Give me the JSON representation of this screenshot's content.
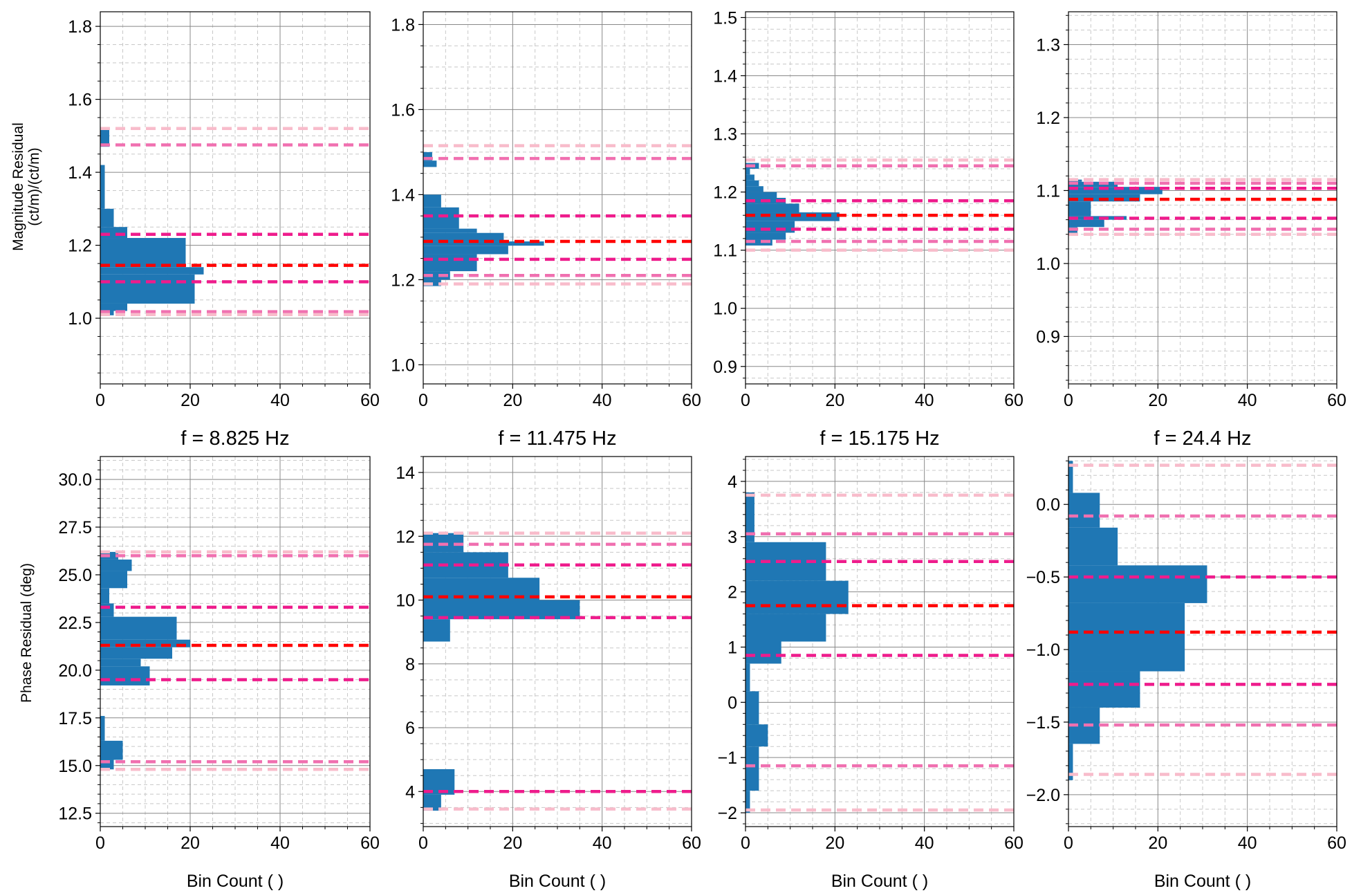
{
  "figure": {
    "magnitude_ylabel": [
      "Magnitude Residual",
      "(ct/m)/(ct/m)"
    ],
    "phase_ylabel": "Phase Residual (deg)",
    "xlabel": "Bin Count ( )"
  },
  "style": {
    "bar_color": "#1f77b4",
    "median_color": "#ff0000",
    "sigma1_color": "#ee1c8c",
    "sigma2_color": "#f070b0",
    "sigma3_color": "#f8bccb",
    "grid_major": "#888888",
    "grid_minor": "#c8c8c8"
  },
  "chart_data": [
    {
      "type": "bar",
      "orientation": "horizontal",
      "row": "magnitude",
      "col": 0,
      "title": "",
      "xlabel": "",
      "ylabel": "Magnitude Residual (ct/m)/(ct/m)",
      "xlim": [
        0,
        60
      ],
      "ylim": [
        0.82,
        1.84
      ],
      "xticks": [
        "0",
        "20",
        "40",
        "60"
      ],
      "yticks": [
        1.0,
        1.2,
        1.4,
        1.6,
        1.8
      ],
      "ytick_labels": [
        "1.0",
        "1.2",
        "1.4",
        "1.6",
        "1.8"
      ],
      "yminor_step": 0.05,
      "grid": true,
      "bins": [
        [
          1.008,
          1.02,
          3
        ],
        [
          1.02,
          1.04,
          6
        ],
        [
          1.04,
          1.12,
          21
        ],
        [
          1.12,
          1.14,
          23
        ],
        [
          1.14,
          1.22,
          19
        ],
        [
          1.22,
          1.25,
          6
        ],
        [
          1.25,
          1.3,
          3
        ],
        [
          1.3,
          1.42,
          1
        ],
        [
          1.47,
          1.52,
          2
        ]
      ],
      "lines": [
        {
          "level": "sigma3",
          "value": 1.52
        },
        {
          "level": "sigma2",
          "value": 1.475
        },
        {
          "level": "sigma1",
          "value": 1.23
        },
        {
          "level": "median",
          "value": 1.145
        },
        {
          "level": "sigma1",
          "value": 1.1
        },
        {
          "level": "sigma2",
          "value": 1.018
        },
        {
          "level": "sigma3",
          "value": 1.01
        }
      ]
    },
    {
      "type": "bar",
      "orientation": "horizontal",
      "row": "magnitude",
      "col": 1,
      "title": "",
      "xlabel": "",
      "ylabel": "",
      "xlim": [
        0,
        60
      ],
      "ylim": [
        0.955,
        1.83
      ],
      "xticks": [
        "0",
        "20",
        "40",
        "60"
      ],
      "yticks": [
        1.0,
        1.2,
        1.4,
        1.6,
        1.8
      ],
      "ytick_labels": [
        "1.0",
        "1.2",
        "1.4",
        "1.6",
        "1.8"
      ],
      "yminor_step": 0.05,
      "grid": true,
      "bins": [
        [
          1.185,
          1.2,
          4
        ],
        [
          1.2,
          1.22,
          6
        ],
        [
          1.22,
          1.26,
          12
        ],
        [
          1.26,
          1.28,
          19
        ],
        [
          1.28,
          1.29,
          27
        ],
        [
          1.29,
          1.31,
          18
        ],
        [
          1.31,
          1.32,
          12
        ],
        [
          1.32,
          1.37,
          8
        ],
        [
          1.37,
          1.4,
          4
        ],
        [
          1.465,
          1.48,
          3
        ],
        [
          1.48,
          1.5,
          2
        ]
      ],
      "lines": [
        {
          "level": "sigma3",
          "value": 1.515
        },
        {
          "level": "sigma2",
          "value": 1.485
        },
        {
          "level": "sigma1",
          "value": 1.35
        },
        {
          "level": "median",
          "value": 1.29
        },
        {
          "level": "sigma1",
          "value": 1.248
        },
        {
          "level": "sigma2",
          "value": 1.21
        },
        {
          "level": "sigma3",
          "value": 1.19
        }
      ]
    },
    {
      "type": "bar",
      "orientation": "horizontal",
      "row": "magnitude",
      "col": 2,
      "title": "",
      "xlabel": "",
      "ylabel": "",
      "xlim": [
        0,
        60
      ],
      "ylim": [
        0.87,
        1.51
      ],
      "xticks": [
        "0",
        "20",
        "40",
        "60"
      ],
      "yticks": [
        0.9,
        1.0,
        1.1,
        1.2,
        1.3,
        1.4,
        1.5
      ],
      "ytick_labels": [
        "0.9",
        "1.0",
        "1.1",
        "1.2",
        "1.3",
        "1.4",
        "1.5"
      ],
      "yminor_step": 0.02,
      "grid": true,
      "bins": [
        [
          1.108,
          1.118,
          6
        ],
        [
          1.118,
          1.13,
          9
        ],
        [
          1.13,
          1.15,
          11
        ],
        [
          1.15,
          1.165,
          21
        ],
        [
          1.165,
          1.18,
          12
        ],
        [
          1.18,
          1.19,
          9
        ],
        [
          1.19,
          1.2,
          7
        ],
        [
          1.2,
          1.21,
          4
        ],
        [
          1.21,
          1.22,
          3
        ],
        [
          1.22,
          1.23,
          2
        ],
        [
          1.23,
          1.24,
          1
        ],
        [
          1.24,
          1.25,
          3
        ]
      ],
      "lines": [
        {
          "level": "sigma3",
          "value": 1.255
        },
        {
          "level": "sigma2",
          "value": 1.245
        },
        {
          "level": "sigma1",
          "value": 1.185
        },
        {
          "level": "median",
          "value": 1.16
        },
        {
          "level": "sigma1",
          "value": 1.136
        },
        {
          "level": "sigma2",
          "value": 1.115
        },
        {
          "level": "sigma3",
          "value": 1.1
        }
      ]
    },
    {
      "type": "bar",
      "orientation": "horizontal",
      "row": "magnitude",
      "col": 3,
      "title": "",
      "xlabel": "",
      "ylabel": "",
      "xlim": [
        0,
        60
      ],
      "ylim": [
        0.835,
        1.345
      ],
      "xticks": [
        "0",
        "20",
        "40",
        "60"
      ],
      "yticks": [
        0.9,
        1.0,
        1.1,
        1.2,
        1.3
      ],
      "ytick_labels": [
        "0.9",
        "1.0",
        "1.1",
        "1.2",
        "1.3"
      ],
      "yminor_step": 0.02,
      "grid": true,
      "bins": [
        [
          1.04,
          1.05,
          2
        ],
        [
          1.05,
          1.06,
          8
        ],
        [
          1.06,
          1.065,
          13
        ],
        [
          1.065,
          1.085,
          5
        ],
        [
          1.085,
          1.095,
          16
        ],
        [
          1.095,
          1.105,
          21
        ],
        [
          1.105,
          1.112,
          11
        ],
        [
          1.112,
          1.115,
          3
        ]
      ],
      "lines": [
        {
          "level": "sigma3",
          "value": 1.115
        },
        {
          "level": "sigma2",
          "value": 1.11
        },
        {
          "level": "sigma1",
          "value": 1.103
        },
        {
          "level": "median",
          "value": 1.088
        },
        {
          "level": "sigma1",
          "value": 1.062
        },
        {
          "level": "sigma2",
          "value": 1.047
        },
        {
          "level": "sigma3",
          "value": 1.04
        }
      ]
    },
    {
      "type": "bar",
      "orientation": "horizontal",
      "row": "phase",
      "col": 0,
      "title": "f = 8.825 Hz",
      "xlabel": "Bin Count ( )",
      "ylabel": "Phase Residual (deg)",
      "xlim": [
        0,
        60
      ],
      "ylim": [
        11.8,
        31.2
      ],
      "xticks": [
        "0",
        "20",
        "40",
        "60"
      ],
      "yticks": [
        12.5,
        15.0,
        17.5,
        20.0,
        22.5,
        25.0,
        27.5,
        30.0
      ],
      "ytick_labels": [
        "12.5",
        "15.0",
        "17.5",
        "20.0",
        "22.5",
        "25.0",
        "27.5",
        "30.0"
      ],
      "yminor_step": 0.5,
      "grid": true,
      "bins": [
        [
          14.8,
          15.3,
          3
        ],
        [
          15.3,
          16.3,
          5
        ],
        [
          16.3,
          17.6,
          1
        ],
        [
          19.2,
          20.2,
          11
        ],
        [
          20.2,
          20.6,
          9
        ],
        [
          20.6,
          21.2,
          16
        ],
        [
          21.2,
          21.6,
          20
        ],
        [
          21.6,
          22.8,
          17
        ],
        [
          22.8,
          23.5,
          3
        ],
        [
          23.5,
          24.3,
          2
        ],
        [
          24.3,
          25.2,
          6
        ],
        [
          25.2,
          25.8,
          7
        ],
        [
          25.8,
          26.2,
          4
        ]
      ],
      "lines": [
        {
          "level": "sigma3",
          "value": 26.2
        },
        {
          "level": "sigma2",
          "value": 26.0
        },
        {
          "level": "sigma1",
          "value": 23.3
        },
        {
          "level": "median",
          "value": 21.3
        },
        {
          "level": "sigma1",
          "value": 19.5
        },
        {
          "level": "sigma2",
          "value": 15.2
        },
        {
          "level": "sigma3",
          "value": 14.8
        }
      ]
    },
    {
      "type": "bar",
      "orientation": "horizontal",
      "row": "phase",
      "col": 1,
      "title": "f = 11.475 Hz",
      "xlabel": "Bin Count ( )",
      "ylabel": "",
      "xlim": [
        0,
        60
      ],
      "ylim": [
        2.9,
        14.5
      ],
      "xticks": [
        "0",
        "20",
        "40",
        "60"
      ],
      "yticks": [
        4,
        6,
        8,
        10,
        12,
        14
      ],
      "ytick_labels": [
        "4",
        "6",
        "8",
        "10",
        "12",
        "14"
      ],
      "yminor_step": 0.5,
      "grid": true,
      "bins": [
        [
          3.4,
          3.9,
          4
        ],
        [
          3.9,
          4.7,
          7
        ],
        [
          8.7,
          9.4,
          6
        ],
        [
          9.4,
          10.0,
          35
        ],
        [
          10.0,
          10.7,
          26
        ],
        [
          10.7,
          11.5,
          19
        ],
        [
          11.5,
          12.1,
          9
        ]
      ],
      "lines": [
        {
          "level": "sigma3",
          "value": 12.1
        },
        {
          "level": "sigma2",
          "value": 11.75
        },
        {
          "level": "sigma1",
          "value": 11.1
        },
        {
          "level": "median",
          "value": 10.1
        },
        {
          "level": "sigma1",
          "value": 9.45
        },
        {
          "level": "sigma1",
          "value": 4.0
        },
        {
          "level": "sigma3",
          "value": 3.45
        }
      ]
    },
    {
      "type": "bar",
      "orientation": "horizontal",
      "row": "phase",
      "col": 2,
      "title": "f = 15.175 Hz",
      "xlabel": "Bin Count ( )",
      "ylabel": "",
      "xlim": [
        0,
        60
      ],
      "ylim": [
        -2.25,
        4.45
      ],
      "xticks": [
        "0",
        "20",
        "40",
        "60"
      ],
      "yticks": [
        -2,
        -1,
        0,
        1,
        2,
        3,
        4
      ],
      "ytick_labels": [
        "−2",
        "−1",
        "0",
        "1",
        "2",
        "3",
        "4"
      ],
      "yminor_step": 0.2,
      "grid": true,
      "bins": [
        [
          -2.0,
          -1.6,
          1
        ],
        [
          -1.6,
          -0.8,
          3
        ],
        [
          -0.8,
          -0.4,
          5
        ],
        [
          -0.4,
          0.2,
          3
        ],
        [
          0.2,
          0.7,
          1
        ],
        [
          0.7,
          1.1,
          8
        ],
        [
          1.1,
          1.6,
          18
        ],
        [
          1.6,
          2.2,
          23
        ],
        [
          2.2,
          2.9,
          18
        ],
        [
          2.9,
          3.8,
          2
        ]
      ],
      "lines": [
        {
          "level": "sigma3",
          "value": 3.75
        },
        {
          "level": "sigma2",
          "value": 3.05
        },
        {
          "level": "sigma1",
          "value": 2.55
        },
        {
          "level": "median",
          "value": 1.75
        },
        {
          "level": "sigma1",
          "value": 0.85
        },
        {
          "level": "sigma2",
          "value": -1.15
        },
        {
          "level": "sigma3",
          "value": -1.95
        }
      ]
    },
    {
      "type": "bar",
      "orientation": "horizontal",
      "row": "phase",
      "col": 3,
      "title": "f = 24.4 Hz",
      "xlabel": "Bin Count ( )",
      "ylabel": "",
      "xlim": [
        0,
        60
      ],
      "ylim": [
        -2.22,
        0.33
      ],
      "xticks": [
        "0",
        "20",
        "40",
        "60"
      ],
      "yticks": [
        -2.0,
        -1.5,
        -1.0,
        -0.5,
        0.0
      ],
      "ytick_labels": [
        "−2.0",
        "−1.5",
        "−1.0",
        "−0.5",
        "0.0"
      ],
      "yminor_step": 0.1,
      "grid": true,
      "bins": [
        [
          -1.9,
          -1.65,
          1
        ],
        [
          -1.65,
          -1.4,
          7
        ],
        [
          -1.4,
          -1.15,
          16
        ],
        [
          -1.15,
          -0.68,
          26
        ],
        [
          -0.68,
          -0.42,
          31
        ],
        [
          -0.42,
          -0.16,
          11
        ],
        [
          -0.16,
          0.08,
          7
        ],
        [
          0.08,
          0.3,
          1
        ]
      ],
      "lines": [
        {
          "level": "sigma3",
          "value": 0.27
        },
        {
          "level": "sigma2",
          "value": -0.08
        },
        {
          "level": "sigma1",
          "value": -0.5
        },
        {
          "level": "median",
          "value": -0.88
        },
        {
          "level": "sigma1",
          "value": -1.24
        },
        {
          "level": "sigma2",
          "value": -1.52
        },
        {
          "level": "sigma3",
          "value": -1.86
        }
      ]
    }
  ]
}
